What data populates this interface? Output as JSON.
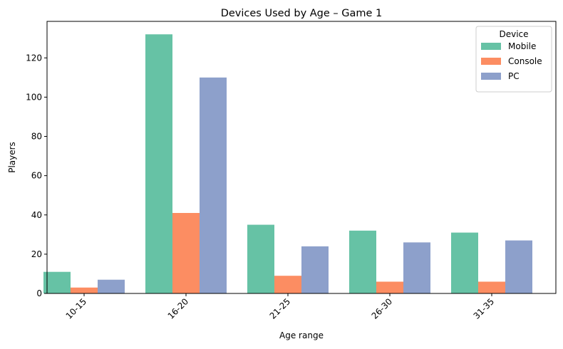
{
  "chart_data": {
    "type": "bar",
    "title": "Devices Used by Age – Game 1",
    "xlabel": "Age range",
    "ylabel": "Players",
    "categories": [
      "10-15",
      "16-20",
      "21-25",
      "26-30",
      "31-35"
    ],
    "series": [
      {
        "name": "Mobile",
        "color": "#66c2a5",
        "values": [
          11,
          132,
          35,
          32,
          31
        ]
      },
      {
        "name": "Console",
        "color": "#fc8d62",
        "values": [
          3,
          41,
          9,
          6,
          6
        ]
      },
      {
        "name": "PC",
        "color": "#8da0cb",
        "values": [
          7,
          110,
          24,
          26,
          27
        ]
      }
    ],
    "ylim": [
      0,
      138.6
    ],
    "yticks": [
      0,
      20,
      40,
      60,
      80,
      100,
      120
    ],
    "legend": {
      "title": "Device",
      "position": "top-right"
    },
    "grid": false
  }
}
